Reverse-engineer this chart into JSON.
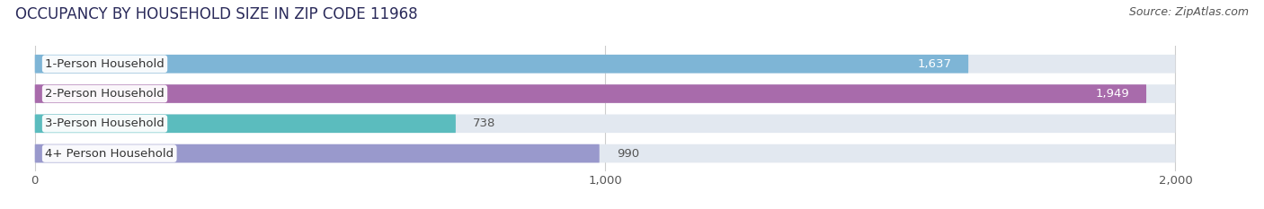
{
  "title": "OCCUPANCY BY HOUSEHOLD SIZE IN ZIP CODE 11968",
  "source": "Source: ZipAtlas.com",
  "categories": [
    "1-Person Household",
    "2-Person Household",
    "3-Person Household",
    "4+ Person Household"
  ],
  "values": [
    1637,
    1949,
    738,
    990
  ],
  "bar_colors": [
    "#7EB5D6",
    "#A86BAB",
    "#5BBCBE",
    "#9999CC"
  ],
  "bar_bg_color": "#E2E8F0",
  "value_labels": [
    "1,637",
    "1,949",
    "738",
    "990"
  ],
  "value_label_colors": [
    "#FFFFFF",
    "#FFFFFF",
    "#555555",
    "#555555"
  ],
  "xlim_min": 0,
  "xlim_max": 2000,
  "xticks": [
    0,
    1000,
    2000
  ],
  "xtick_labels": [
    "0",
    "1,000",
    "2,000"
  ],
  "title_fontsize": 12,
  "label_fontsize": 9.5,
  "value_fontsize": 9.5,
  "source_fontsize": 9,
  "background_color": "#FFFFFF",
  "bar_height": 0.62,
  "bar_gap": 0.38,
  "label_bg_color": "#FFFFFF"
}
